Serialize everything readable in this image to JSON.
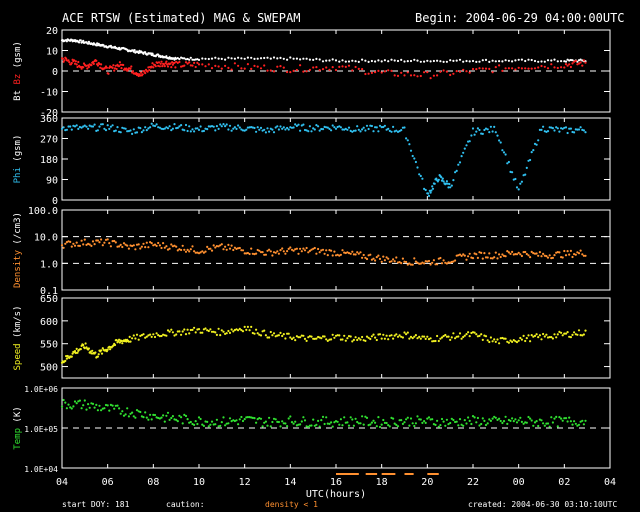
{
  "header": {
    "title": "ACE RTSW (Estimated) MAG & SWEPAM",
    "begin": "Begin: 2004-06-29 04:00:00UTC"
  },
  "footer": {
    "start_doy": "start DOY: 181",
    "caution": "caution:",
    "density_note": "density < 1",
    "created": "created: 2004-06-30 03:10:10UTC"
  },
  "colors": {
    "bt": "#ffffff",
    "bz": "#ff2020",
    "phi": "#30c0f0",
    "density": "#ff9030",
    "speed": "#f0f020",
    "temp": "#30e030",
    "caution": "#ff9030"
  },
  "chart_data": [
    {
      "type": "scatter",
      "panel": "mag",
      "ylabel": [
        "Bt",
        "Bz",
        "(gsm)"
      ],
      "yticks": [
        "20",
        "10",
        "0",
        "-10",
        "-20"
      ],
      "ylim": [
        -20,
        20
      ],
      "dashed_reference": [
        0
      ],
      "series": [
        {
          "name": "Bt",
          "color": "#ffffff",
          "x": [
            4,
            4.5,
            5,
            5.5,
            6,
            6.5,
            7,
            7.5,
            8,
            8.5,
            9,
            10,
            12,
            14,
            16,
            18,
            20,
            22,
            24,
            26,
            27
          ],
          "y": [
            15,
            15,
            14,
            13,
            12,
            11,
            10,
            9,
            8,
            7,
            6,
            6,
            6,
            6,
            5,
            5,
            5,
            5,
            5,
            5,
            5
          ]
        },
        {
          "name": "Bz",
          "color": "#ff2020",
          "x": [
            4,
            4.5,
            5,
            5.5,
            6,
            6.5,
            7,
            7.5,
            8,
            8.5,
            9,
            10,
            12,
            14,
            16,
            18,
            20,
            22,
            24,
            26,
            27
          ],
          "y": [
            6,
            4,
            2,
            5,
            0,
            3,
            1,
            -2,
            3,
            4,
            3,
            3,
            2,
            1,
            2,
            -1,
            -2,
            0,
            2,
            3,
            4
          ]
        }
      ]
    },
    {
      "type": "scatter",
      "panel": "phi",
      "ylabel": [
        "Phi",
        "(gsm)"
      ],
      "yticks": [
        "360",
        "270",
        "180",
        "90",
        "0"
      ],
      "ylim": [
        0,
        360
      ],
      "series": [
        {
          "name": "Phi",
          "color": "#30c0f0",
          "x": [
            4,
            5,
            6,
            7,
            8,
            9,
            10,
            11,
            12,
            13,
            14,
            15,
            16,
            17,
            18,
            19,
            20,
            20.5,
            21,
            22,
            23,
            24,
            25,
            26,
            27
          ],
          "y": [
            320,
            315,
            320,
            300,
            325,
            320,
            310,
            320,
            315,
            305,
            320,
            315,
            320,
            310,
            315,
            305,
            20,
            100,
            60,
            300,
            310,
            40,
            315,
            305,
            310
          ]
        }
      ]
    },
    {
      "type": "scatter",
      "panel": "density",
      "ylabel": [
        "Density",
        "(/cm3)"
      ],
      "yticks": [
        "100.0",
        "10.0",
        "1.0",
        "0.1"
      ],
      "ylim": [
        0.1,
        100
      ],
      "log_scale": true,
      "dashed_reference": [
        10,
        1
      ],
      "series": [
        {
          "name": "Density",
          "color": "#ff9030",
          "x": [
            4,
            5,
            6,
            7,
            8,
            9,
            10,
            11,
            12,
            13,
            14,
            15,
            16,
            17,
            18,
            19,
            20,
            21,
            22,
            23,
            24,
            25,
            26,
            27
          ],
          "y": [
            5,
            6,
            6,
            4,
            5,
            4,
            3,
            4,
            3,
            2.5,
            3,
            3,
            2.5,
            2,
            1.5,
            1.2,
            1.1,
            1.3,
            2,
            2,
            2.5,
            2,
            2.2,
            2.5
          ]
        }
      ]
    },
    {
      "type": "scatter",
      "panel": "speed",
      "ylabel": [
        "Speed",
        "(km/s)"
      ],
      "yticks": [
        "650",
        "600",
        "550",
        "500"
      ],
      "ylim": [
        475,
        650
      ],
      "series": [
        {
          "name": "Speed",
          "color": "#f0f020",
          "x": [
            4,
            4.5,
            5,
            5.5,
            6,
            6.5,
            7,
            8,
            9,
            10,
            11,
            12,
            13,
            14,
            15,
            16,
            17,
            18,
            19,
            20,
            21,
            22,
            23,
            24,
            25,
            26,
            27
          ],
          "y": [
            510,
            530,
            545,
            525,
            540,
            555,
            560,
            570,
            575,
            580,
            575,
            585,
            570,
            565,
            560,
            565,
            560,
            565,
            570,
            560,
            565,
            570,
            555,
            560,
            565,
            570,
            575
          ]
        }
      ]
    },
    {
      "type": "scatter",
      "panel": "temp",
      "ylabel": [
        "Temp",
        "(K)"
      ],
      "yticks": [
        "1.0E+06",
        "1.0E+05",
        "1.0E+04"
      ],
      "ylim": [
        10000,
        1000000
      ],
      "log_scale": true,
      "dashed_reference": [
        100000
      ],
      "x_label": "UTC(hours)",
      "xticks": [
        "04",
        "06",
        "08",
        "10",
        "12",
        "14",
        "16",
        "18",
        "20",
        "22",
        "00",
        "02",
        "04"
      ],
      "series": [
        {
          "name": "Temp",
          "color": "#30e030",
          "x": [
            4,
            5,
            6,
            7,
            8,
            9,
            10,
            11,
            12,
            13,
            14,
            15,
            16,
            17,
            18,
            19,
            20,
            21,
            22,
            23,
            24,
            25,
            26,
            27
          ],
          "y": [
            400000,
            380000,
            300000,
            250000,
            200000,
            170000,
            150000,
            140000,
            160000,
            140000,
            150000,
            140000,
            145000,
            150000,
            140000,
            150000,
            145000,
            140000,
            150000,
            145000,
            150000,
            140000,
            145000,
            150000
          ]
        }
      ]
    }
  ]
}
